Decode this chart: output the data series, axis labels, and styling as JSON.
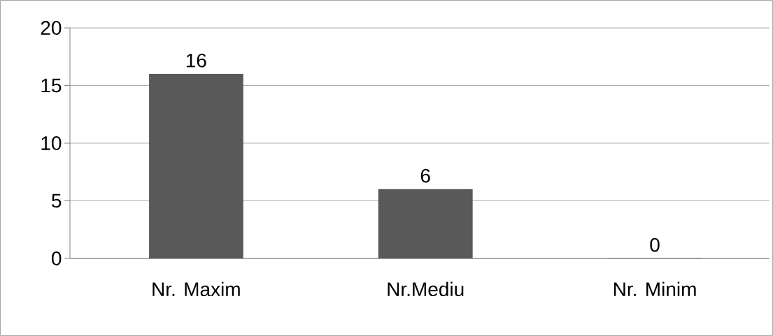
{
  "chart_data": {
    "type": "bar",
    "categories": [
      "Nr. Maxim",
      "Nr.Mediu",
      "Nr. Minim"
    ],
    "values": [
      16,
      6,
      0
    ],
    "color": "#595959",
    "ylim": [
      0,
      20
    ],
    "yticks": [
      0,
      5,
      10,
      15,
      20
    ],
    "grid": "y",
    "data_labels": true
  }
}
